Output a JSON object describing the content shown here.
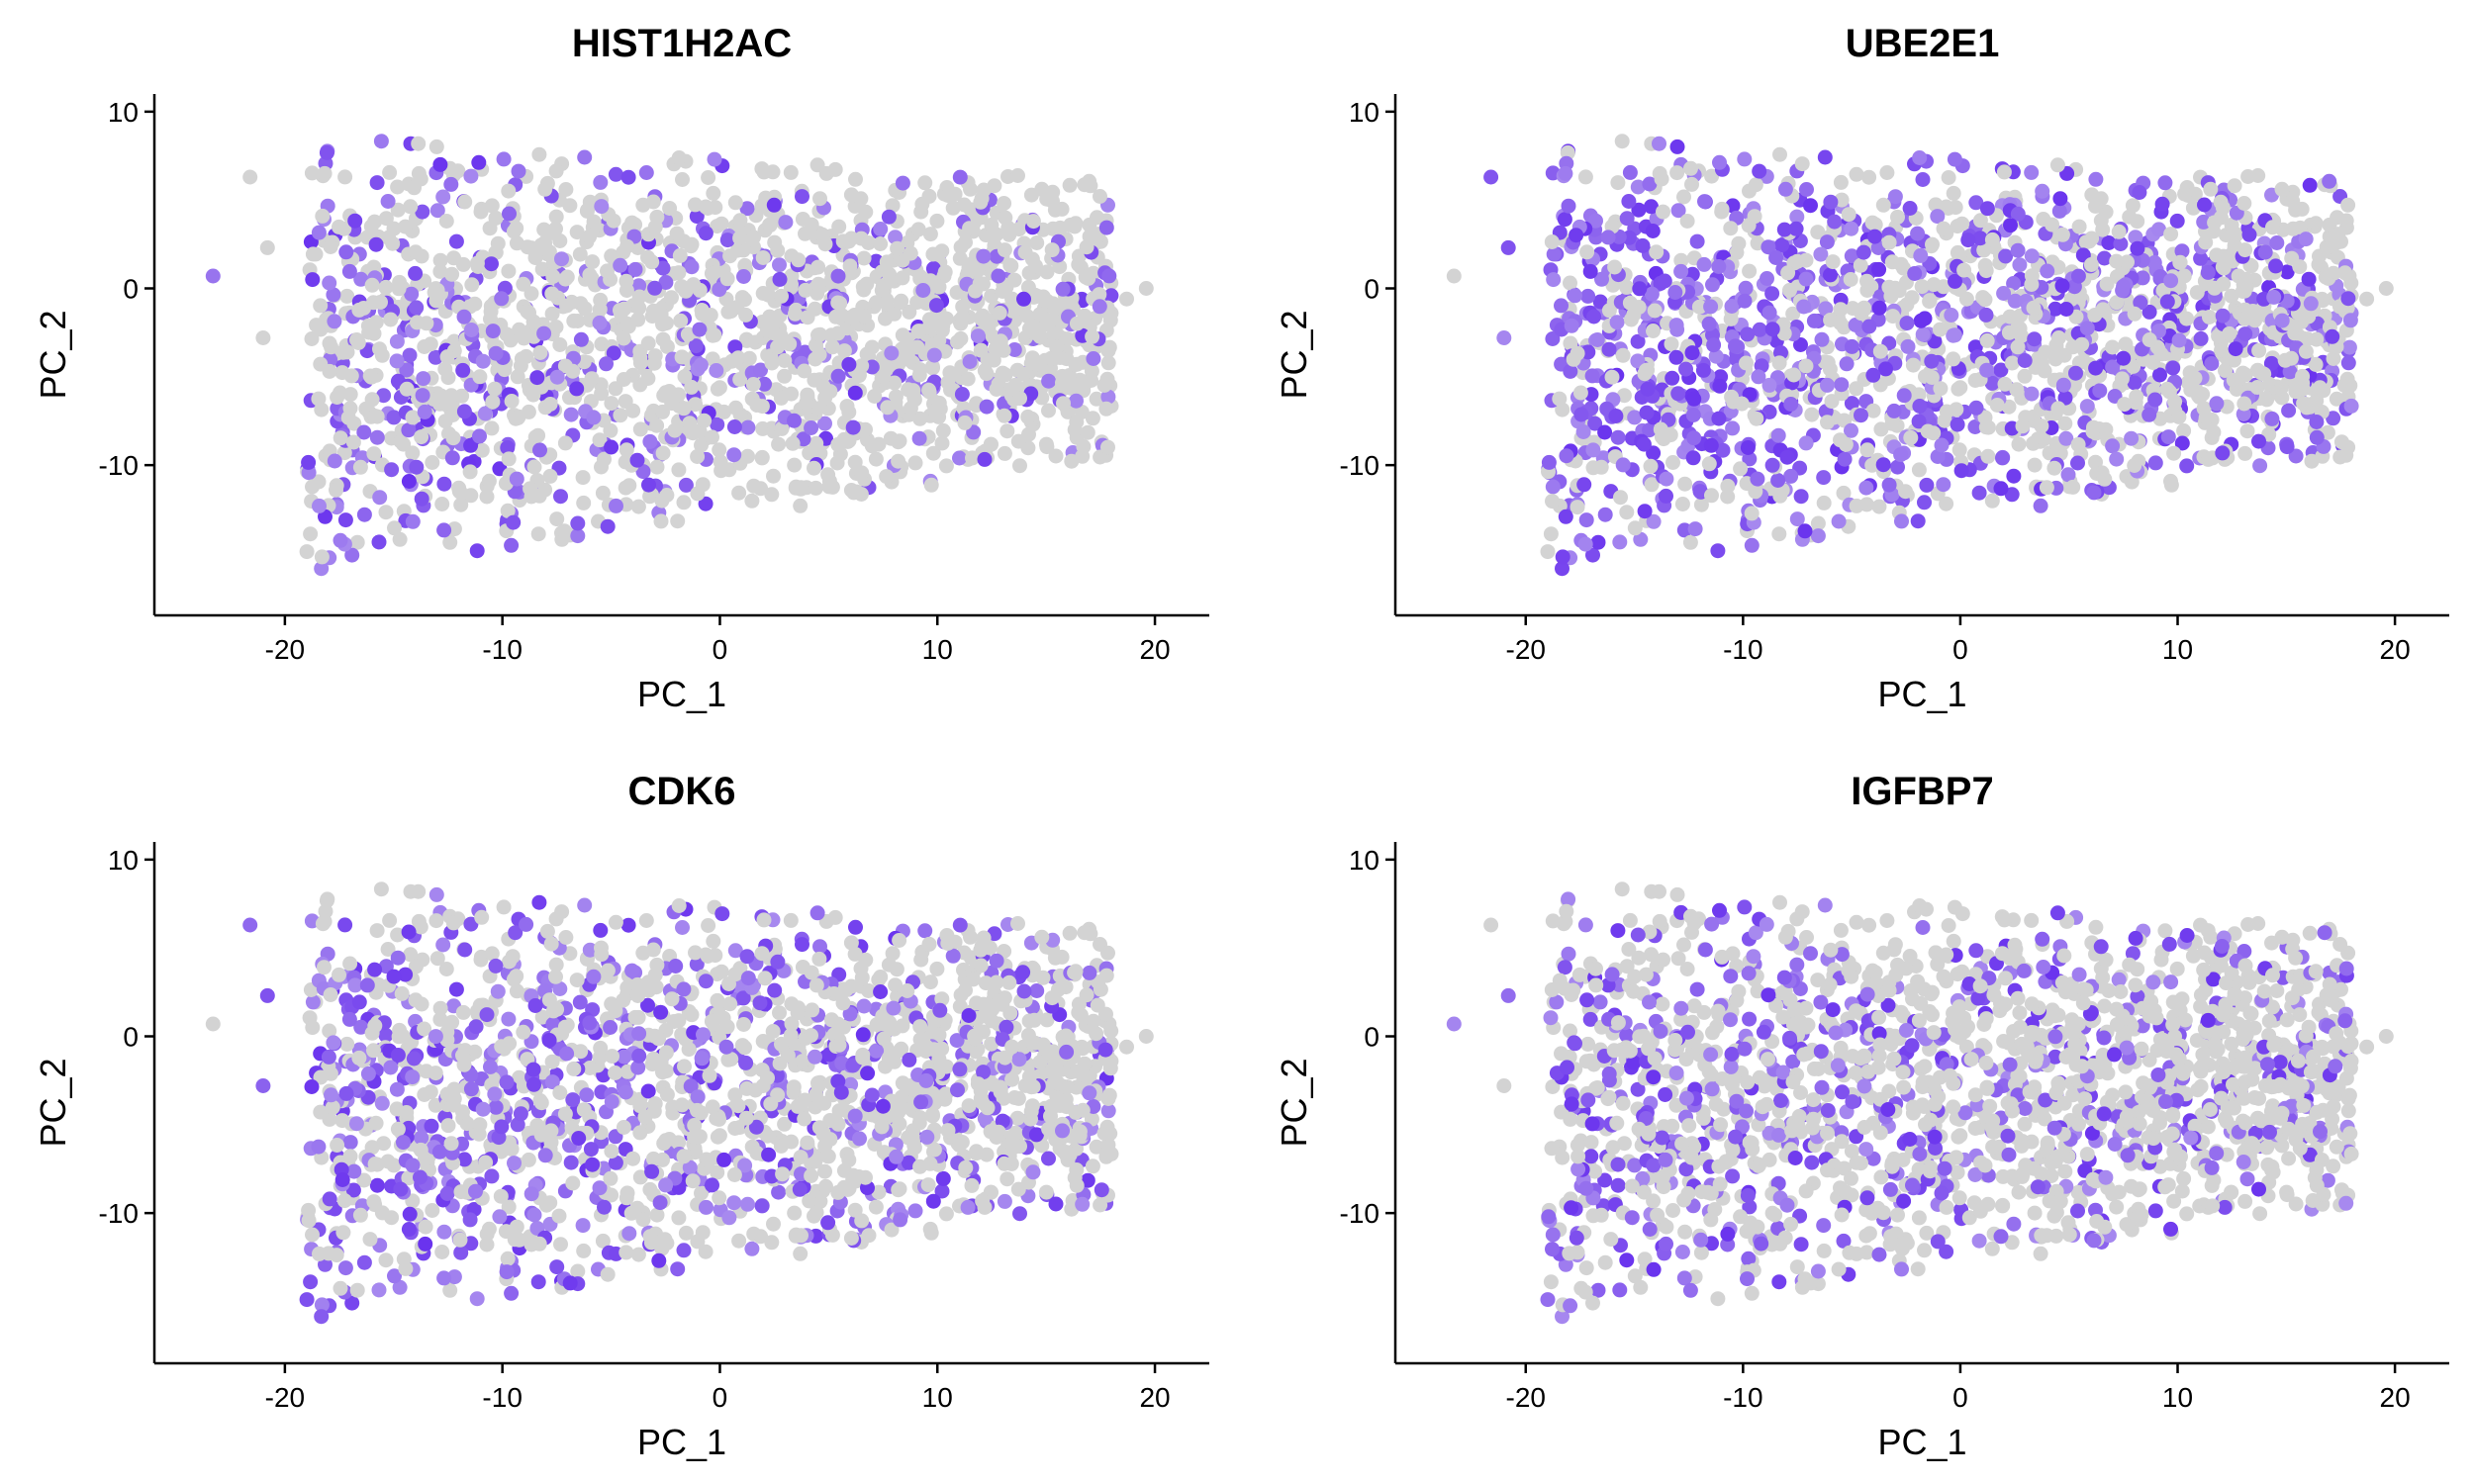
{
  "chart_data": [
    {
      "type": "scatter",
      "title": "HIST1H2AC",
      "xlabel": "PC_1",
      "ylabel": "PC_2",
      "xlim": [
        -26,
        22.5
      ],
      "ylim": [
        -18.5,
        11
      ],
      "xticks": [
        -20,
        -10,
        0,
        10,
        20
      ],
      "yticks": [
        10,
        0,
        -10
      ],
      "xtick_labels": [
        "-20",
        "-10",
        "0",
        "10",
        "20"
      ],
      "ytick_labels": [
        "10",
        "0",
        "-10"
      ],
      "grid": false,
      "color_low": "#d3d3d3",
      "color_high": "#6a33ee",
      "expression_bias": -0.35,
      "expression_fraction": 0.33,
      "seed": 11
    },
    {
      "type": "scatter",
      "title": "UBE2E1",
      "xlabel": "PC_1",
      "ylabel": "PC_2",
      "xlim": [
        -26,
        22.5
      ],
      "ylim": [
        -18.5,
        11
      ],
      "xticks": [
        -20,
        -10,
        0,
        10,
        20
      ],
      "yticks": [
        10,
        0,
        -10
      ],
      "xtick_labels": [
        "-20",
        "-10",
        "0",
        "10",
        "20"
      ],
      "ytick_labels": [
        "10",
        "0",
        "-10"
      ],
      "grid": false,
      "color_low": "#d3d3d3",
      "color_high": "#6a33ee",
      "expression_bias": -0.25,
      "expression_fraction": 0.58,
      "seed": 23
    },
    {
      "type": "scatter",
      "title": "CDK6",
      "xlabel": "PC_1",
      "ylabel": "PC_2",
      "xlim": [
        -26,
        22.5
      ],
      "ylim": [
        -18.5,
        11
      ],
      "xticks": [
        -20,
        -10,
        0,
        10,
        20
      ],
      "yticks": [
        10,
        0,
        -10
      ],
      "xtick_labels": [
        "-20",
        "-10",
        "0",
        "10",
        "20"
      ],
      "ytick_labels": [
        "10",
        "0",
        "-10"
      ],
      "grid": false,
      "color_low": "#d3d3d3",
      "color_high": "#6a33ee",
      "expression_bias": -0.3,
      "expression_fraction": 0.45,
      "seed": 37
    },
    {
      "type": "scatter",
      "title": "IGFBP7",
      "xlabel": "PC_1",
      "ylabel": "PC_2",
      "xlim": [
        -26,
        22.5
      ],
      "ylim": [
        -18.5,
        11
      ],
      "xticks": [
        -20,
        -10,
        0,
        10,
        20
      ],
      "yticks": [
        10,
        0,
        -10
      ],
      "xtick_labels": [
        "-20",
        "-10",
        "0",
        "10",
        "20"
      ],
      "ytick_labels": [
        "10",
        "0",
        "-10"
      ],
      "grid": false,
      "color_low": "#d3d3d3",
      "color_high": "#6a33ee",
      "expression_bias": -0.28,
      "expression_fraction": 0.4,
      "seed": 51
    }
  ]
}
